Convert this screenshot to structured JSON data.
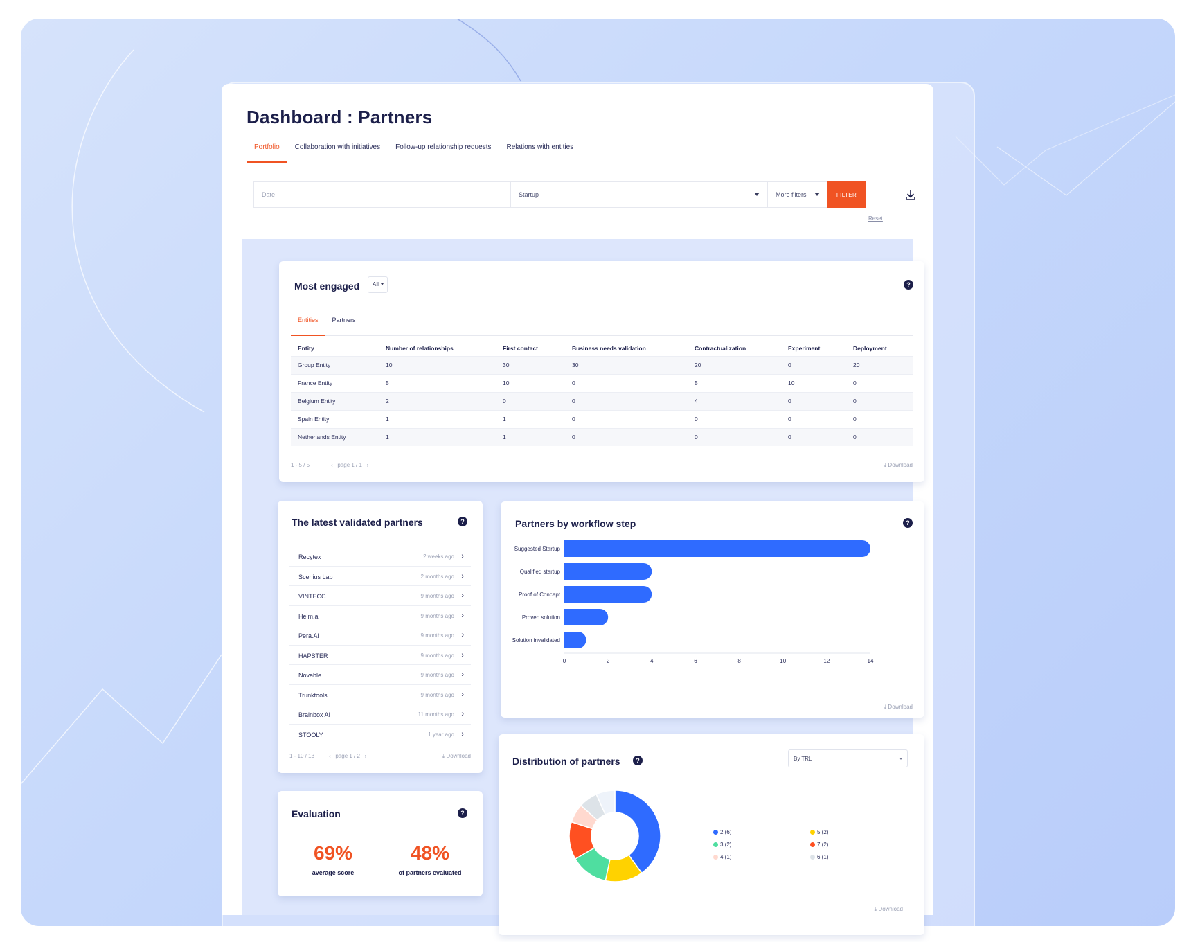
{
  "page": {
    "title": "Dashboard : Partners"
  },
  "tabs": [
    {
      "label": "Portfolio",
      "active": true
    },
    {
      "label": "Collaboration with initiatives"
    },
    {
      "label": "Follow-up relationship requests"
    },
    {
      "label": "Relations with entities"
    }
  ],
  "filters": {
    "date_placeholder": "Date",
    "startup_value": "Startup",
    "more_filters": "More filters",
    "filter_button": "FILTER",
    "reset": "Reset"
  },
  "most_engaged": {
    "title": "Most engaged",
    "selector": "All",
    "subtabs": [
      {
        "label": "Entities",
        "active": true
      },
      {
        "label": "Partners"
      }
    ],
    "columns": [
      "Entity",
      "Number of relationships",
      "First contact",
      "Business needs validation",
      "Contractualization",
      "Experiment",
      "Deployment"
    ],
    "rows": [
      [
        "Group Entity",
        "10",
        "30",
        "30",
        "20",
        "0",
        "20"
      ],
      [
        "France Entity",
        "5",
        "10",
        "0",
        "5",
        "10",
        "0"
      ],
      [
        "Belgium Entity",
        "2",
        "0",
        "0",
        "4",
        "0",
        "0"
      ],
      [
        "Spain Entity",
        "1",
        "1",
        "0",
        "0",
        "0",
        "0"
      ],
      [
        "Netherlands Entity",
        "1",
        "1",
        "0",
        "0",
        "0",
        "0"
      ]
    ],
    "range": "1 - 5 / 5",
    "page": "page 1 / 1",
    "download": "Download"
  },
  "latest_validated": {
    "title": "The latest validated partners",
    "items": [
      {
        "name": "Recytex",
        "ago": "2 weeks ago"
      },
      {
        "name": "Scenius Lab",
        "ago": "2 months ago"
      },
      {
        "name": "VINTECC",
        "ago": "9 months ago"
      },
      {
        "name": "Helm.ai",
        "ago": "9 months ago"
      },
      {
        "name": "Pera.Ai",
        "ago": "9 months ago"
      },
      {
        "name": "HAPSTER",
        "ago": "9 months ago"
      },
      {
        "name": "Novable",
        "ago": "9 months ago"
      },
      {
        "name": "Trunktools",
        "ago": "9 months ago"
      },
      {
        "name": "Brainbox AI",
        "ago": "11 months ago"
      },
      {
        "name": "STOOLY",
        "ago": "1 year ago"
      }
    ],
    "range": "1 - 10 / 13",
    "page": "page 1 / 2",
    "download": "Download"
  },
  "evaluation": {
    "title": "Evaluation",
    "average_score": "69%",
    "average_label": "average score",
    "evaluated": "48%",
    "evaluated_label": "of partners evaluated"
  },
  "workflow": {
    "title": "Partners by workflow step",
    "download": "Download"
  },
  "distribution": {
    "title": "Distribution of partners",
    "selector": "By TRL",
    "download": "Download"
  },
  "colors": {
    "accent": "#f05323",
    "navy": "#1c1f4a",
    "bar": "#2f6bff"
  },
  "chart_data": [
    {
      "type": "bar",
      "orientation": "horizontal",
      "title": "Partners by workflow step",
      "categories": [
        "Suggested Startup",
        "Qualified startup",
        "Proof of Concept",
        "Proven solution",
        "Solution invalidated"
      ],
      "values": [
        14,
        4,
        4,
        2,
        1
      ],
      "xlim": [
        0,
        14
      ],
      "xticks": [
        "0",
        "2",
        "4",
        "6",
        "8",
        "10",
        "12",
        "14"
      ],
      "grid": false
    },
    {
      "type": "pie",
      "donut": true,
      "title": "Distribution of partners",
      "slices": [
        {
          "label": "2 (6)",
          "value": 6,
          "color": "#2f6bff"
        },
        {
          "label": "5 (2)",
          "value": 2,
          "color": "#ffd200"
        },
        {
          "label": "3 (2)",
          "value": 2,
          "color": "#4fdea0"
        },
        {
          "label": "7 (2)",
          "value": 2,
          "color": "#ff5021"
        },
        {
          "label": "4 (1)",
          "value": 1,
          "color": "#ffd9cf"
        },
        {
          "label": "6 (1)",
          "value": 1,
          "color": "#dde3e8"
        },
        {
          "label": "",
          "value": 1,
          "color": "#eef3fa"
        }
      ],
      "legend": "right"
    }
  ]
}
